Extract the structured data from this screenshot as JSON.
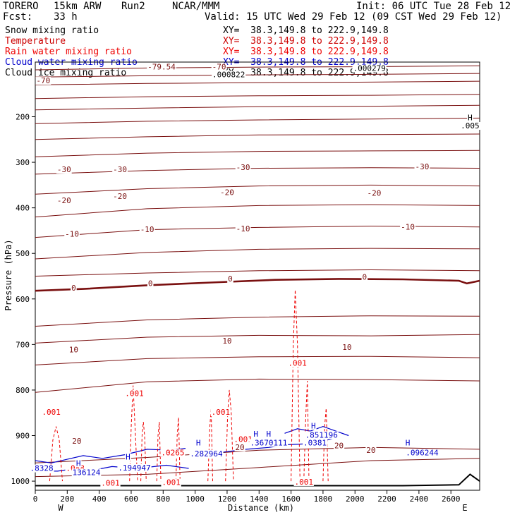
{
  "header": {
    "model": "TORERO",
    "resolution": "15km ARW",
    "run": "Run2",
    "org": "NCAR/MMM",
    "init": "Init: 06 UTC Tue 28 Feb 12",
    "fcst_label": "Fcst:",
    "fcst_value": "33 h",
    "valid": "Valid: 15 UTC Wed 29 Feb 12 (09 CST Wed 29 Feb 12)"
  },
  "legend": [
    {
      "name": "Snow mixing ratio",
      "xy": "XY=  38.3,149.8 to 222.9,149.8",
      "color": "#000000"
    },
    {
      "name": "Temperature",
      "xy": "XY=  38.3,149.8 to 222.9,149.8",
      "color": "#cc0000"
    },
    {
      "name": "Rain water mixing ratio",
      "xy": "XY=  38.3,149.8 to 222.9,149.8",
      "color": "#ee0000"
    },
    {
      "name": "Cloud water mixing ratio",
      "xy": "XY=  38.3,149.8 to 222.9,149.8",
      "color": "#0000cc"
    },
    {
      "name": "Cloud ice mixing ratio",
      "xy": "XY=  38.3,149.8 to 222.9,149.8",
      "color": "#000000"
    }
  ],
  "chart_data": {
    "type": "cross-section-contour",
    "xlabel": "Distance (km)",
    "ylabel": "Pressure (hPa)",
    "xlim": [
      0,
      2780
    ],
    "ylim": [
      1020,
      80
    ],
    "x_ticks": [
      0,
      200,
      400,
      600,
      800,
      1000,
      1200,
      1400,
      1600,
      1800,
      2000,
      2200,
      2400,
      2600
    ],
    "y_ticks": [
      200,
      300,
      400,
      500,
      600,
      700,
      800,
      900,
      1000
    ],
    "x_ends": {
      "left": "W",
      "right": "E"
    },
    "colors": {
      "temperature": "#7a1010",
      "rain": "#ee0000",
      "cloud": "#0000cc",
      "terrain": "#000000"
    },
    "temperature_lines": [
      {
        "x": [
          0,
          700,
          1400,
          2100,
          2780
        ],
        "p": [
          97,
          93,
          91,
          90,
          88
        ]
      },
      {
        "x": [
          0,
          700,
          1400,
          2100,
          2780
        ],
        "p": [
          113,
          110,
          108,
          107,
          105
        ]
      },
      {
        "x": [
          0,
          700,
          1400,
          2100,
          2780
        ],
        "p": [
          130,
          127,
          125,
          124,
          122
        ]
      },
      {
        "x": [
          0,
          700,
          1400,
          2100,
          2780
        ],
        "p": [
          160,
          156,
          154,
          153,
          151
        ]
      },
      {
        "x": [
          0,
          700,
          1400,
          2100,
          2780
        ],
        "p": [
          185,
          181,
          178,
          177,
          175
        ]
      },
      {
        "x": [
          0,
          700,
          1400,
          2100,
          2780
        ],
        "p": [
          215,
          210,
          207,
          205,
          203
        ]
      },
      {
        "x": [
          0,
          700,
          1400,
          2100,
          2780
        ],
        "p": [
          250,
          244,
          240,
          239,
          238
        ]
      },
      {
        "x": [
          0,
          700,
          1400,
          2100,
          2780
        ],
        "p": [
          288,
          280,
          276,
          275,
          274
        ]
      },
      {
        "x": [
          0,
          700,
          1400,
          2100,
          2780
        ],
        "p": [
          326,
          318,
          313,
          312,
          313
        ]
      },
      {
        "x": [
          0,
          700,
          1400,
          2100,
          2780
        ],
        "p": [
          370,
          358,
          352,
          350,
          352
        ]
      },
      {
        "x": [
          0,
          700,
          1400,
          2100,
          2780
        ],
        "p": [
          420,
          402,
          395,
          393,
          395
        ]
      },
      {
        "x": [
          0,
          700,
          1400,
          2100,
          2780
        ],
        "p": [
          465,
          448,
          443,
          440,
          442
        ]
      },
      {
        "x": [
          0,
          700,
          1400,
          2100,
          2780
        ],
        "p": [
          512,
          498,
          491,
          489,
          490
        ]
      },
      {
        "x": [
          0,
          700,
          1400,
          2100,
          2780
        ],
        "p": [
          550,
          543,
          538,
          536,
          538
        ]
      },
      {
        "x": [
          0,
          700,
          1400,
          2100,
          2780
        ],
        "p": [
          660,
          646,
          640,
          637,
          638
        ]
      },
      {
        "x": [
          0,
          700,
          1400,
          2100,
          2780
        ],
        "p": [
          697,
          684,
          680,
          681,
          678
        ]
      },
      {
        "x": [
          0,
          700,
          1400,
          2100,
          2780
        ],
        "p": [
          745,
          731,
          727,
          726,
          729
        ]
      },
      {
        "x": [
          0,
          700,
          1400,
          2100,
          2780
        ],
        "p": [
          805,
          782,
          776,
          777,
          780
        ]
      },
      {
        "x": [
          0,
          700,
          1400,
          2100,
          2780
        ],
        "p": [
          960,
          948,
          932,
          926,
          930
        ]
      },
      {
        "x": [
          0,
          700,
          1400,
          2100,
          2780
        ],
        "p": [
          990,
          985,
          970,
          955,
          950
        ]
      }
    ],
    "freezing_line": {
      "x": [
        0,
        300,
        700,
        1100,
        1500,
        1900,
        2300,
        2650,
        2700,
        2780
      ],
      "p": [
        582,
        578,
        570,
        564,
        558,
        556,
        557,
        560,
        566,
        560
      ]
    },
    "terrain": {
      "x": [
        0,
        400,
        1000,
        1600,
        2300,
        2650,
        2720,
        2780
      ],
      "p": [
        1010,
        1010,
        1010,
        1010,
        1010,
        1008,
        985,
        1000
      ]
    },
    "temperature_labels": [
      {
        "text": "-70",
        "x": 50,
        "p": 125
      },
      {
        "text": "-79.54",
        "x": 790,
        "p": 95
      },
      {
        "text": "-70",
        "x": 1150,
        "p": 95
      },
      {
        "text": "-30",
        "x": 180,
        "p": 320
      },
      {
        "text": "-30",
        "x": 530,
        "p": 320
      },
      {
        "text": "-30",
        "x": 1300,
        "p": 315
      },
      {
        "text": "-30",
        "x": 2420,
        "p": 314
      },
      {
        "text": "-20",
        "x": 180,
        "p": 388
      },
      {
        "text": "-20",
        "x": 530,
        "p": 379
      },
      {
        "text": "-20",
        "x": 1200,
        "p": 370
      },
      {
        "text": "-20",
        "x": 2120,
        "p": 372
      },
      {
        "text": "-10",
        "x": 230,
        "p": 462
      },
      {
        "text": "-10",
        "x": 700,
        "p": 452
      },
      {
        "text": "-10",
        "x": 1300,
        "p": 450
      },
      {
        "text": "-10",
        "x": 2330,
        "p": 446
      },
      {
        "text": "0",
        "x": 240,
        "p": 580
      },
      {
        "text": "0",
        "x": 720,
        "p": 570
      },
      {
        "text": "0",
        "x": 1220,
        "p": 560
      },
      {
        "text": "0",
        "x": 2060,
        "p": 556
      },
      {
        "text": "10",
        "x": 240,
        "p": 716
      },
      {
        "text": "10",
        "x": 1200,
        "p": 696
      },
      {
        "text": "10",
        "x": 1950,
        "p": 710
      },
      {
        "text": "20",
        "x": 260,
        "p": 916
      },
      {
        "text": "20",
        "x": 1280,
        "p": 930
      },
      {
        "text": "20",
        "x": 1900,
        "p": 926
      },
      {
        "text": "20",
        "x": 2100,
        "p": 936
      }
    ],
    "rain_labels": [
      {
        "text": ".001",
        "x": 100,
        "p": 853
      },
      {
        "text": ".001",
        "x": 620,
        "p": 812
      },
      {
        "text": ".001",
        "x": 1160,
        "p": 853
      },
      {
        "text": ".001",
        "x": 1300,
        "p": 912
      },
      {
        "text": ".001",
        "x": 1640,
        "p": 745
      },
      {
        "text": ".0265",
        "x": 860,
        "p": 942
      },
      {
        "text": ".088",
        "x": 250,
        "p": 976
      },
      {
        "text": ".001",
        "x": 470,
        "p": 1008
      },
      {
        "text": ".001",
        "x": 850,
        "p": 1007
      },
      {
        "text": ".001",
        "x": 1680,
        "p": 1006
      }
    ],
    "cloud_labels": [
      {
        "text": "H",
        "x": 270,
        "p": 965
      },
      {
        "text": "136124",
        "x": 320,
        "p": 985
      },
      {
        "text": ".8328",
        "x": 40,
        "p": 976
      },
      {
        "text": "H",
        "x": 580,
        "p": 951
      },
      {
        "text": ".194947",
        "x": 620,
        "p": 975
      },
      {
        "text": "H",
        "x": 1020,
        "p": 920
      },
      {
        "text": ".282964",
        "x": 1070,
        "p": 944
      },
      {
        "text": "H",
        "x": 1380,
        "p": 901
      },
      {
        "text": "H",
        "x": 1460,
        "p": 901
      },
      {
        "text": ".3670111",
        "x": 1460,
        "p": 920
      },
      {
        "text": "H",
        "x": 1740,
        "p": 883
      },
      {
        "text": ".851196",
        "x": 1790,
        "p": 903
      },
      {
        "text": ".0381",
        "x": 1750,
        "p": 920
      },
      {
        "text": "H",
        "x": 2330,
        "p": 920
      },
      {
        "text": ".096244",
        "x": 2420,
        "p": 942
      }
    ],
    "ice_labels": [
      {
        "text": "H",
        "x": 2720,
        "p": 206
      },
      {
        "text": ".005",
        "x": 2720,
        "p": 224
      },
      {
        "text": ".000822",
        "x": 1210,
        "p": 112
      },
      {
        "text": ".000279",
        "x": 2090,
        "p": 98
      }
    ],
    "rain_plumes": [
      {
        "x": [
          590,
          600,
          612,
          624,
          640
        ],
        "p": [
          1000,
          880,
          790,
          880,
          1000
        ]
      },
      {
        "x": [
          660,
          668,
          676,
          684,
          694
        ],
        "p": [
          1000,
          900,
          870,
          900,
          1000
        ]
      },
      {
        "x": [
          760,
          768,
          776,
          786
        ],
        "p": [
          1000,
          900,
          870,
          1000
        ]
      },
      {
        "x": [
          880,
          888,
          896,
          906
        ],
        "p": [
          1000,
          900,
          860,
          1000
        ]
      },
      {
        "x": [
          1080,
          1092,
          1100,
          1110
        ],
        "p": [
          1000,
          880,
          840,
          1000
        ]
      },
      {
        "x": [
          1190,
          1204,
          1214,
          1226,
          1240
        ],
        "p": [
          1000,
          850,
          800,
          850,
          1000
        ]
      },
      {
        "x": [
          1600,
          1614,
          1626,
          1640,
          1656
        ],
        "p": [
          1000,
          700,
          580,
          700,
          1000
        ]
      },
      {
        "x": [
          1680,
          1692,
          1702,
          1712
        ],
        "p": [
          1000,
          860,
          780,
          1000
        ]
      },
      {
        "x": [
          1800,
          1810,
          1820,
          1832
        ],
        "p": [
          1000,
          880,
          840,
          1000
        ]
      },
      {
        "x": [
          90,
          110,
          130,
          150,
          170
        ],
        "p": [
          1000,
          910,
          880,
          910,
          1000
        ]
      }
    ],
    "cloud_outlines": [
      {
        "x": [
          0,
          100,
          200,
          300,
          420,
          560,
          700,
          840,
          940
        ],
        "p": [
          955,
          960,
          952,
          944,
          950,
          942,
          930,
          932,
          928
        ]
      },
      {
        "x": [
          40,
          140,
          260,
          360,
          480,
          640,
          820,
          960
        ],
        "p": [
          978,
          978,
          972,
          976,
          968,
          972,
          965,
          972
        ]
      },
      {
        "x": [
          1050,
          1180,
          1320,
          1460,
          1580,
          1700,
          1800,
          1880
        ],
        "p": [
          940,
          936,
          930,
          926,
          920,
          918,
          912,
          905
        ]
      },
      {
        "x": [
          1560,
          1640,
          1720,
          1800,
          1880,
          1960
        ],
        "p": [
          895,
          885,
          890,
          880,
          890,
          900
        ]
      }
    ]
  }
}
